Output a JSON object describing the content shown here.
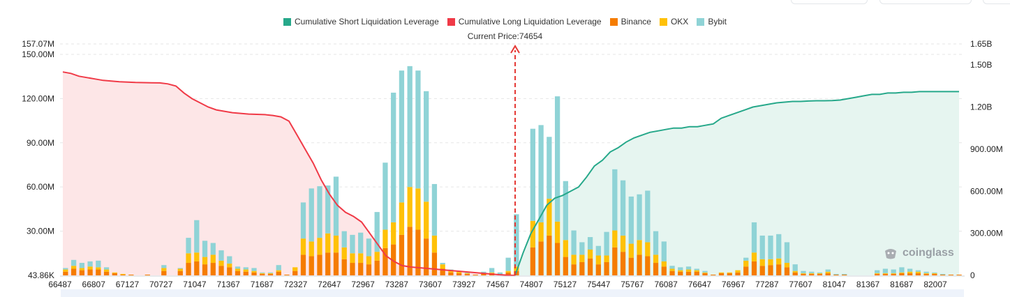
{
  "legend": [
    {
      "label": "Cumulative Short Liquidation Leverage",
      "color": "#26a88a",
      "icon": "short-leverage-swatch"
    },
    {
      "label": "Cumulative Long Liquidation Leverage",
      "color": "#f03a47",
      "icon": "long-leverage-swatch"
    },
    {
      "label": "Binance",
      "color": "#f57c00",
      "icon": "binance-swatch"
    },
    {
      "label": "OKX",
      "color": "#ffc107",
      "icon": "okx-swatch"
    },
    {
      "label": "Bybit",
      "color": "#8fd3d6",
      "icon": "bybit-swatch"
    }
  ],
  "current_price_label": "Current Price:74654",
  "watermark": "coinglass",
  "colors": {
    "binance": "#f57c00",
    "okx": "#ffc107",
    "bybit": "#8fd3d6",
    "short": "#26a88a",
    "long": "#f03a47",
    "short_fill": "#e6f5f0",
    "long_fill": "#fde6e7",
    "grid": "#e6e6e6"
  },
  "chart_data": {
    "type": "bar",
    "left_axis": {
      "min": 43860,
      "max": 157070000,
      "ticks": [
        30000000,
        60000000,
        90000000,
        120000000,
        150000000
      ],
      "tick_labels": [
        "30.00M",
        "60.00M",
        "90.00M",
        "120.00M",
        "150.00M"
      ],
      "min_label": "43.86K",
      "max_label": "157.07M"
    },
    "right_axis": {
      "min": 0,
      "max": 1650000000,
      "ticks": [
        0,
        300000000,
        600000000,
        900000000,
        1200000000,
        1500000000
      ],
      "tick_labels": [
        "0",
        "300.00M",
        "600.00M",
        "900.00M",
        "1.20B",
        "1.50B"
      ],
      "max_label": "1.65B"
    },
    "x_tick_labels": [
      "66487",
      "66807",
      "67127",
      "70727",
      "71047",
      "71367",
      "71687",
      "72327",
      "72647",
      "72967",
      "73287",
      "73607",
      "73927",
      "74567",
      "74807",
      "75127",
      "75447",
      "75767",
      "76087",
      "76647",
      "76967",
      "77287",
      "77607",
      "81047",
      "81367",
      "81687",
      "82007"
    ],
    "current_price": 74654,
    "series": [
      {
        "name": "Binance",
        "values": [
          2.5,
          4.5,
          3.5,
          4,
          4,
          2.5,
          1.5,
          0.5,
          0.5,
          0,
          0.5,
          0,
          3,
          0,
          3,
          8.5,
          9.5,
          7.5,
          8.5,
          6.5,
          5.5,
          3,
          2.5,
          2,
          1,
          1,
          2.5,
          0.5,
          3,
          14,
          13,
          14,
          15.5,
          15.5,
          11,
          8.5,
          8.5,
          7.5,
          10,
          18.5,
          21,
          27.5,
          33,
          31,
          25,
          15.5,
          4.5,
          2,
          1.5,
          1,
          0.5,
          1,
          1.5,
          0.5,
          2,
          3,
          0,
          19,
          23,
          27,
          22,
          12.5,
          7.5,
          9,
          11.5,
          7.5,
          9,
          19,
          16,
          12,
          14,
          13,
          8.5,
          6,
          3,
          2.5,
          2.5,
          2.5,
          1.5,
          0.5,
          1.5,
          1.5,
          2,
          6,
          9.5,
          6.5,
          7,
          7.5,
          5.5,
          2,
          1,
          1,
          1,
          1.5,
          0.5,
          0.5,
          0,
          0,
          0,
          1,
          1,
          1,
          1.5,
          1.5,
          1.5,
          1,
          1,
          0.5,
          0.5,
          0.5
        ]
      },
      {
        "name": "OKX",
        "values": [
          1.5,
          2,
          1.5,
          2,
          1.5,
          1.5,
          0.5,
          0.5,
          0,
          0,
          0,
          0,
          2,
          0,
          1.5,
          6.5,
          6,
          5,
          5.5,
          3.5,
          2.5,
          1.5,
          1.5,
          1,
          0.5,
          0.5,
          1,
          0,
          2.5,
          11,
          10,
          11.5,
          13,
          11.5,
          8,
          6.5,
          6.5,
          5.5,
          6,
          12.5,
          15,
          22,
          27,
          28,
          25,
          11.5,
          3,
          1,
          1,
          0.5,
          0,
          0.5,
          0.5,
          0,
          1,
          3,
          0,
          18,
          13,
          25,
          14.5,
          11.5,
          6.5,
          5,
          6,
          6,
          4.5,
          11.5,
          11,
          9.5,
          10,
          9.5,
          5.5,
          3.5,
          1.5,
          1,
          1.5,
          1,
          0.5,
          0,
          0.5,
          0.5,
          1.5,
          4,
          6,
          4.5,
          4,
          4,
          3,
          1,
          0.5,
          0.5,
          0.5,
          1,
          0,
          0,
          0,
          0,
          0,
          0.5,
          0.5,
          0.5,
          0.5,
          1,
          1,
          0.5,
          0.5,
          0,
          0,
          0
        ]
      },
      {
        "name": "Bybit",
        "values": [
          1,
          4,
          3.5,
          3.5,
          4.5,
          1.5,
          0,
          0,
          0,
          0,
          0,
          0,
          2,
          0,
          0.5,
          10.5,
          22,
          11,
          8,
          7,
          5,
          1.5,
          1.5,
          2,
          0.5,
          0.5,
          3.5,
          0,
          0,
          24.5,
          36,
          35,
          32.5,
          40,
          11,
          12.5,
          14,
          12,
          27,
          45.5,
          88,
          89.5,
          82,
          80,
          75,
          35,
          1,
          1,
          0.5,
          0.5,
          0,
          1,
          3,
          1.5,
          9,
          35.5,
          0,
          62.5,
          66,
          42,
          85,
          40,
          16.5,
          8.5,
          8.5,
          6.5,
          16,
          41.5,
          37.5,
          32,
          31,
          35,
          16,
          13.5,
          2,
          2,
          2,
          1,
          1,
          0,
          0,
          0,
          0,
          2,
          20.5,
          16,
          16,
          16.5,
          14,
          4.5,
          1.5,
          1,
          0.5,
          1.5,
          0.5,
          0.5,
          0,
          0,
          0,
          2,
          3,
          2.5,
          3.5,
          2,
          1,
          1,
          0.5,
          0.5,
          0,
          0
        ]
      },
      {
        "name": "Cumulative Long Liquidation Leverage",
        "axis": "right",
        "values": [
          1.45,
          1.44,
          1.42,
          1.41,
          1.4,
          1.39,
          1.385,
          1.38,
          1.378,
          1.375,
          1.374,
          1.373,
          1.372,
          1.365,
          1.35,
          1.3,
          1.26,
          1.23,
          1.2,
          1.18,
          1.17,
          1.16,
          1.155,
          1.15,
          1.148,
          1.146,
          1.14,
          1.13,
          1.1,
          1.0,
          0.9,
          0.8,
          0.68,
          0.58,
          0.5,
          0.45,
          0.42,
          0.38,
          0.3,
          0.22,
          0.14,
          0.1,
          0.07,
          0.06,
          0.055,
          0.05,
          0.045,
          0.04,
          0.035,
          0.03,
          0.025,
          0.02,
          0.015,
          0.01,
          0.005,
          0.002,
          0
        ]
      },
      {
        "name": "Cumulative Short Liquidation Leverage",
        "axis": "right",
        "values": [
          0,
          0.16,
          0.3,
          0.4,
          0.5,
          0.55,
          0.57,
          0.6,
          0.63,
          0.7,
          0.78,
          0.82,
          0.88,
          0.91,
          0.95,
          0.98,
          1.0,
          1.02,
          1.03,
          1.04,
          1.05,
          1.05,
          1.06,
          1.06,
          1.07,
          1.08,
          1.12,
          1.14,
          1.16,
          1.18,
          1.2,
          1.21,
          1.22,
          1.23,
          1.235,
          1.24,
          1.24,
          1.243,
          1.245,
          1.245,
          1.246,
          1.25,
          1.26,
          1.27,
          1.28,
          1.29,
          1.29,
          1.3,
          1.3,
          1.305,
          1.305,
          1.31,
          1.31,
          1.31,
          1.31,
          1.31,
          1.31
        ]
      }
    ]
  }
}
